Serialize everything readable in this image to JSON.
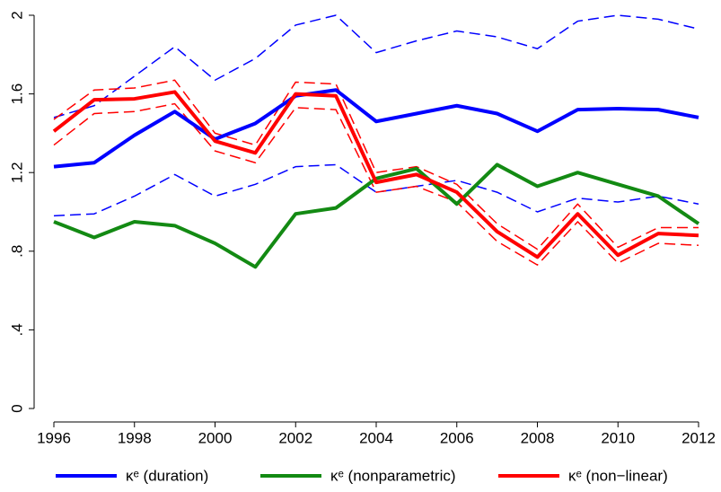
{
  "chart_data": {
    "type": "line",
    "x": [
      1996,
      1997,
      1998,
      1999,
      2000,
      2001,
      2002,
      2003,
      2004,
      2005,
      2006,
      2007,
      2008,
      2009,
      2010,
      2011,
      2012
    ],
    "xlim": [
      1996,
      2012
    ],
    "xticks": [
      1996,
      1998,
      2000,
      2002,
      2004,
      2006,
      2008,
      2010,
      2012
    ],
    "ylim": [
      0,
      2
    ],
    "yticks": [
      0,
      {
        "value": 0.4,
        "label": ".4"
      },
      {
        "value": 0.8,
        "label": ".8"
      },
      1.2,
      1.6,
      2
    ],
    "series": [
      {
        "color": "#0000ff",
        "style": "dashed",
        "values": [
          1.48,
          1.54,
          1.69,
          1.84,
          1.67,
          1.78,
          1.95,
          2.0,
          1.81,
          1.87,
          1.92,
          1.89,
          1.83,
          1.97,
          2.0,
          1.98,
          1.93
        ]
      },
      {
        "color": "#0000ff",
        "style": "dashed",
        "values": [
          0.98,
          0.99,
          1.08,
          1.19,
          1.08,
          1.14,
          1.23,
          1.24,
          1.1,
          1.13,
          1.16,
          1.1,
          1.0,
          1.07,
          1.05,
          1.08,
          1.04
        ]
      },
      {
        "color": "#ff0000",
        "style": "dashed",
        "values": [
          1.47,
          1.62,
          1.63,
          1.67,
          1.4,
          1.34,
          1.66,
          1.65,
          1.2,
          1.23,
          1.14,
          0.94,
          0.81,
          1.04,
          0.82,
          0.92,
          0.92
        ]
      },
      {
        "color": "#ff0000",
        "style": "dashed",
        "values": [
          1.34,
          1.5,
          1.51,
          1.55,
          1.31,
          1.25,
          1.53,
          1.52,
          1.1,
          1.13,
          1.05,
          0.85,
          0.73,
          0.95,
          0.74,
          0.84,
          0.83
        ]
      },
      {
        "name": "κᵉ (duration)",
        "color": "#0000ff",
        "style": "solid",
        "values": [
          1.23,
          1.25,
          1.39,
          1.51,
          1.37,
          1.45,
          1.59,
          1.62,
          1.46,
          1.5,
          1.54,
          1.5,
          1.41,
          1.52,
          1.525,
          1.52,
          1.48
        ]
      },
      {
        "name": "κᵉ (nonparametric)",
        "color": "#138a13",
        "style": "solid",
        "values": [
          0.95,
          0.87,
          0.95,
          0.93,
          0.84,
          0.72,
          0.99,
          1.02,
          1.17,
          1.22,
          1.04,
          1.24,
          1.13,
          1.2,
          1.14,
          1.08,
          0.94
        ]
      },
      {
        "name": "κᵉ (non−linear)",
        "color": "#ff0000",
        "style": "solid",
        "values": [
          1.41,
          1.57,
          1.575,
          1.61,
          1.36,
          1.3,
          1.6,
          1.59,
          1.15,
          1.19,
          1.1,
          0.9,
          0.77,
          0.99,
          0.78,
          0.89,
          0.88
        ]
      }
    ]
  }
}
